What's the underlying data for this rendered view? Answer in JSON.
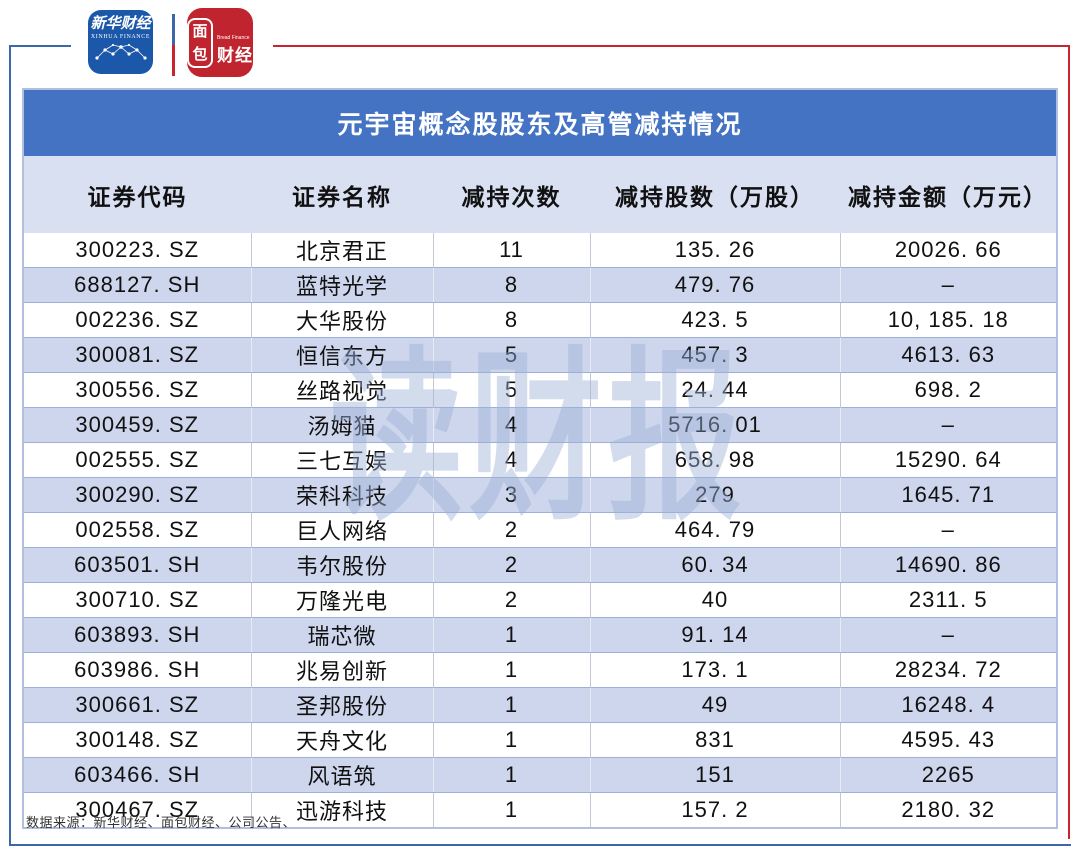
{
  "colors": {
    "frame_blue": "#3c68aa",
    "frame_red": "#c9242d",
    "title_bar_blue": "#4573c4",
    "header_row_bg": "#d9e0f2",
    "alt_row_bg": "#cdd6ec",
    "xinhua_logo_blue": "#1c58a9",
    "bread_logo_red": "#c0242e",
    "watermark_blue": "#9db2d9"
  },
  "logos": {
    "xinhua": {
      "title": "新华财经",
      "subtitle": "XINHUA FINANCE"
    },
    "bread": {
      "box_top": "面",
      "box_bottom": "包",
      "subtitle": "Bread Finance",
      "right_text": "财经"
    }
  },
  "watermark": {
    "text": "读财报"
  },
  "footer": {
    "source": "数据来源：新华财经、面包财经、公司公告、"
  },
  "chart_data": {
    "type": "table",
    "title": "元宇宙概念股股东及高管减持情况",
    "columns": [
      "证券代码",
      "证券名称",
      "减持次数",
      "减持股数（万股）",
      "减持金额（万元）"
    ],
    "rows": [
      [
        "300223. SZ",
        "北京君正",
        "11",
        "135. 26",
        "20026. 66"
      ],
      [
        "688127. SH",
        "蓝特光学",
        "8",
        "479. 76",
        "–"
      ],
      [
        "002236. SZ",
        "大华股份",
        "8",
        "423. 5",
        "10, 185. 18"
      ],
      [
        "300081. SZ",
        "恒信东方",
        "5",
        "457. 3",
        "4613. 63"
      ],
      [
        "300556. SZ",
        "丝路视觉",
        "5",
        "24. 44",
        "698. 2"
      ],
      [
        "300459. SZ",
        "汤姆猫",
        "4",
        "5716. 01",
        "–"
      ],
      [
        "002555. SZ",
        "三七互娱",
        "4",
        "658. 98",
        "15290. 64"
      ],
      [
        "300290. SZ",
        "荣科科技",
        "3",
        "279",
        "1645. 71"
      ],
      [
        "002558. SZ",
        "巨人网络",
        "2",
        "464. 79",
        "–"
      ],
      [
        "603501. SH",
        "韦尔股份",
        "2",
        "60. 34",
        "14690. 86"
      ],
      [
        "300710. SZ",
        "万隆光电",
        "2",
        "40",
        "2311. 5"
      ],
      [
        "603893. SH",
        "瑞芯微",
        "1",
        "91. 14",
        "–"
      ],
      [
        "603986. SH",
        "兆易创新",
        "1",
        "173. 1",
        "28234. 72"
      ],
      [
        "300661. SZ",
        "圣邦股份",
        "1",
        "49",
        "16248. 4"
      ],
      [
        "300148. SZ",
        "天舟文化",
        "1",
        "831",
        "4595. 43"
      ],
      [
        "603466. SH",
        "风语筑",
        "1",
        "151",
        "2265"
      ],
      [
        "300467. SZ",
        "迅游科技",
        "1",
        "157. 2",
        "2180. 32"
      ]
    ],
    "footnote": "数据来源：新华财经、面包财经、公司公告、",
    "layout": {
      "grid": "off",
      "title_position": "top-center-banner",
      "zebra_striping": "on"
    }
  }
}
